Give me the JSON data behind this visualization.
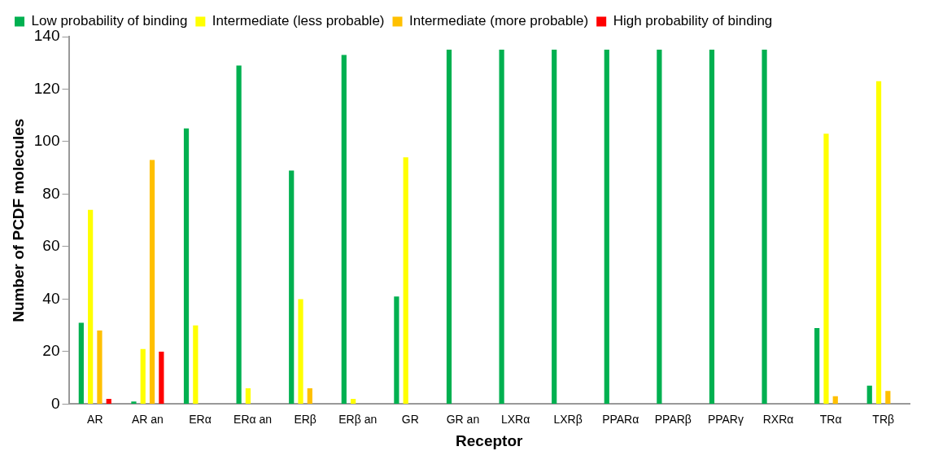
{
  "chart_data": {
    "type": "bar",
    "xlabel": "Receptor",
    "ylabel": "Number of PCDF molecules",
    "categories": [
      "AR",
      "AR an",
      "ERα",
      "ERα an",
      "ERβ",
      "ERβ an",
      "GR",
      "GR an",
      "LXRα",
      "LXRβ",
      "PPARα",
      "PPARβ",
      "PPARγ",
      "RXRα",
      "TRα",
      "TRβ"
    ],
    "series": [
      {
        "name": "Low probability of binding",
        "color": "#00b050",
        "values": [
          31,
          1,
          105,
          129,
          89,
          133,
          41,
          135,
          135,
          135,
          135,
          135,
          135,
          135,
          29,
          7
        ]
      },
      {
        "name": "Intermediate (less probable)",
        "color": "#ffff00",
        "values": [
          74,
          21,
          30,
          6,
          40,
          2,
          94,
          0,
          0,
          0,
          0,
          0,
          0,
          0,
          103,
          123
        ]
      },
      {
        "name": "Intermediate (more probable)",
        "color": "#ffc000",
        "values": [
          28,
          93,
          0,
          0,
          6,
          0,
          0,
          0,
          0,
          0,
          0,
          0,
          0,
          0,
          3,
          5
        ]
      },
      {
        "name": "High probability of binding",
        "color": "#ff0000",
        "values": [
          2,
          20,
          0,
          0,
          0,
          0,
          0,
          0,
          0,
          0,
          0,
          0,
          0,
          0,
          0,
          0
        ]
      }
    ],
    "ylim": [
      0,
      140
    ],
    "yticks": [
      0,
      20,
      40,
      60,
      80,
      100,
      120,
      140
    ],
    "grid": false,
    "legend": "top left"
  }
}
